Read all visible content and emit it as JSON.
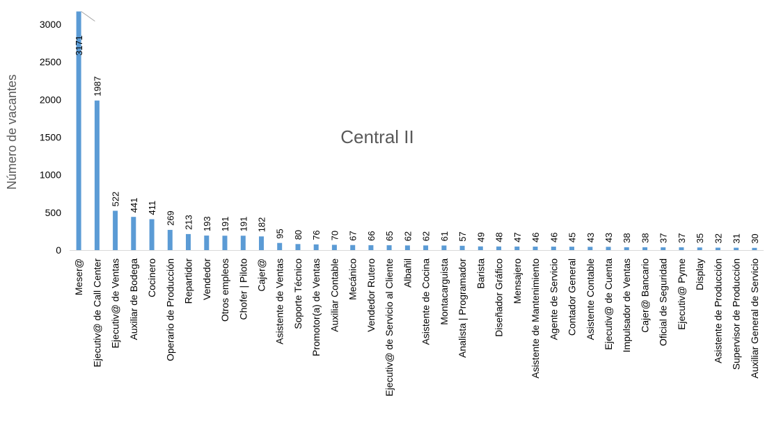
{
  "chart_data": {
    "type": "bar",
    "title": "Central II",
    "xlabel": "",
    "ylabel": "Número de vacantes",
    "ylim": [
      0,
      3000
    ],
    "yticks": [
      0,
      500,
      1000,
      1500,
      2000,
      2500,
      3000
    ],
    "grid": false,
    "bar_color": "#5B9BD5",
    "categories": [
      "Meser@",
      "Ejecutiv@ de Call Center",
      "Ejecutiv@ de Ventas",
      "Auxiliar de Bodega",
      "Cocinero",
      "Operario de Producción",
      "Repartidor",
      "Vendedor",
      "Otros empleos",
      "Chofer | Piloto",
      "Cajer@",
      "Asistente de Ventas",
      "Soporte Técnico",
      "Promotor(a) de Ventas",
      "Auxiliar Contable",
      "Mecánico",
      "Vendedor Rutero",
      "Ejecutiv@ de Servicio al Cliente",
      "Albañil",
      "Asistente de Cocina",
      "Montacarguista",
      "Analista | Programador",
      "Barista",
      "Diseñador Gráfico",
      "Mensajero",
      "Asistente de Mantenimiento",
      "Agente de Servicio",
      "Contador General",
      "Asistente Contable",
      "Ejecutiv@ de Cuenta",
      "Impulsador de Ventas",
      "Cajer@ Bancario",
      "Oficial de Seguridad",
      "Ejecutiv@ Pyme",
      "Display",
      "Asistente de Producción",
      "Supervisor de Producción",
      "Auxiliar General de Servicio"
    ],
    "values": [
      3171,
      1987,
      522,
      441,
      411,
      269,
      213,
      193,
      191,
      191,
      182,
      95,
      80,
      76,
      70,
      67,
      66,
      65,
      62,
      62,
      61,
      57,
      49,
      48,
      47,
      46,
      46,
      45,
      43,
      43,
      38,
      38,
      37,
      37,
      35,
      32,
      31,
      30
    ],
    "labels": [
      "3171",
      "1987",
      "522",
      "441",
      "411",
      "269",
      "213",
      "193",
      "191",
      "191",
      "182",
      "95",
      "80",
      "76",
      "70",
      "67",
      "66",
      "65",
      "62",
      "62",
      "61",
      "57",
      "49",
      "48",
      "47",
      "46",
      "46",
      "45",
      "43",
      "43",
      "38",
      "38",
      "37",
      "37",
      "35",
      "32",
      "31",
      "30"
    ]
  }
}
